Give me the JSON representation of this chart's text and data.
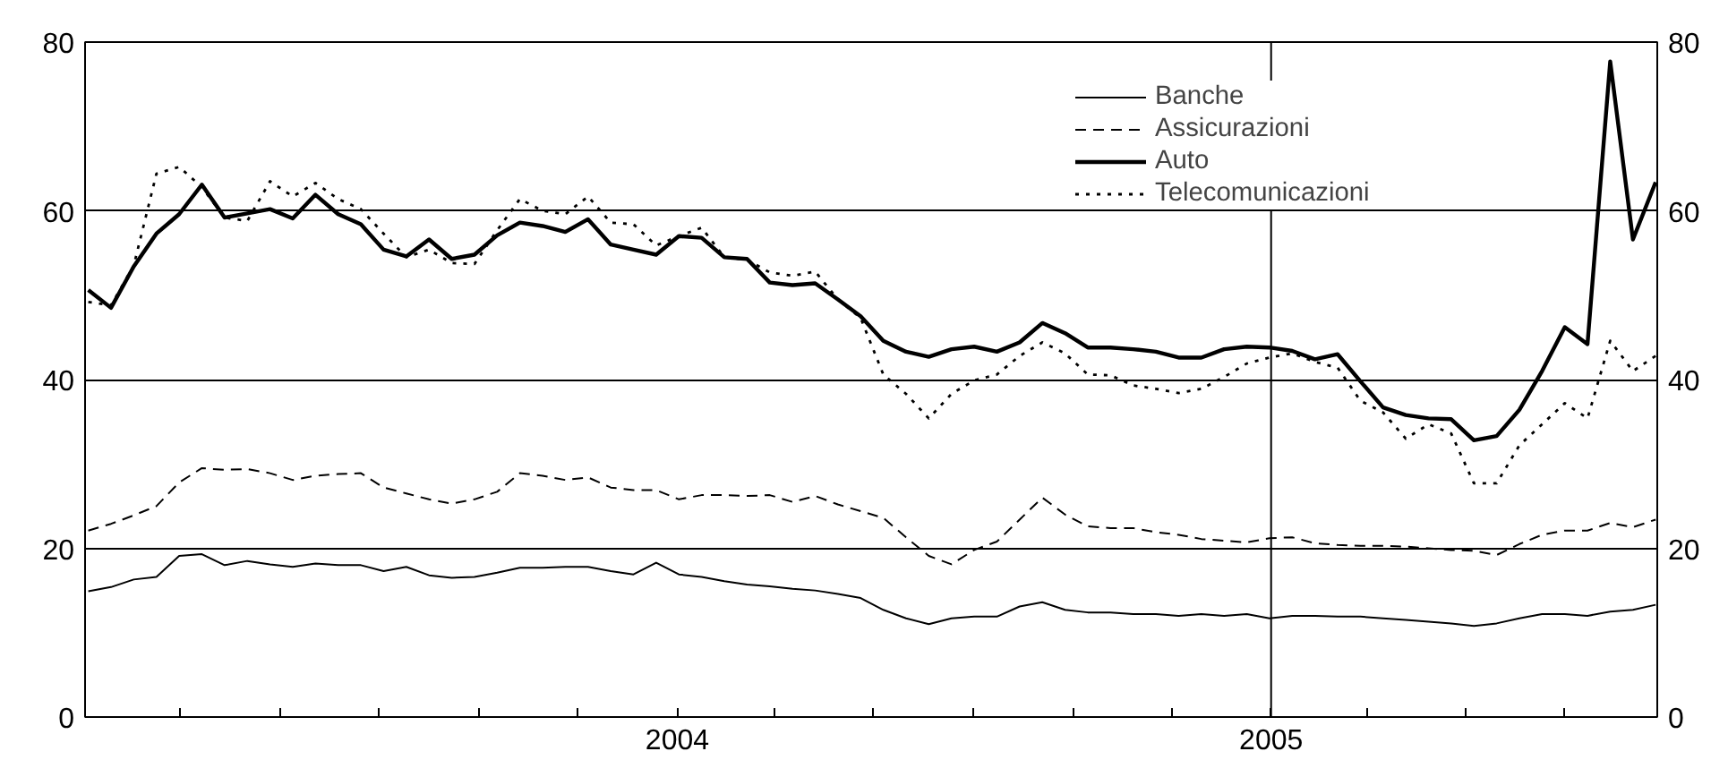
{
  "chart_data": {
    "type": "line",
    "x": [
      "2003-01-03",
      "2003-01-17",
      "2003-01-31",
      "2003-02-14",
      "2003-02-28",
      "2003-03-14",
      "2003-03-28",
      "2003-04-11",
      "2003-04-25",
      "2003-05-09",
      "2003-05-23",
      "2003-06-06",
      "2003-06-20",
      "2003-07-04",
      "2003-07-18",
      "2003-08-01",
      "2003-08-15",
      "2003-08-29",
      "2003-09-12",
      "2003-09-26",
      "2003-10-10",
      "2003-10-24",
      "2003-11-07",
      "2003-11-21",
      "2003-12-05",
      "2003-12-19",
      "2004-01-02",
      "2004-01-16",
      "2004-01-30",
      "2004-02-13",
      "2004-02-27",
      "2004-03-12",
      "2004-03-26",
      "2004-04-09",
      "2004-04-23",
      "2004-05-07",
      "2004-05-21",
      "2004-06-04",
      "2004-06-18",
      "2004-07-02",
      "2004-07-16",
      "2004-07-30",
      "2004-08-13",
      "2004-08-27",
      "2004-09-10",
      "2004-09-24",
      "2004-10-08",
      "2004-10-22",
      "2004-11-05",
      "2004-11-19",
      "2004-12-03",
      "2004-12-17",
      "2004-12-31",
      "2005-01-14",
      "2005-01-28",
      "2005-02-11",
      "2005-02-25",
      "2005-03-11",
      "2005-03-25",
      "2005-04-08",
      "2005-04-22",
      "2005-05-06",
      "2005-05-20",
      "2005-06-03",
      "2005-06-17",
      "2005-07-01",
      "2005-07-15",
      "2005-07-29",
      "2005-08-12",
      "2005-08-26"
    ],
    "series": [
      {
        "name": "Banche",
        "color": "#000000",
        "line_style": "solid",
        "values": [
          14.9,
          15.4,
          16.3,
          16.6,
          19.1,
          19.3,
          18.0,
          18.5,
          18.1,
          17.8,
          18.2,
          18.0,
          18.0,
          17.3,
          17.8,
          16.8,
          16.5,
          16.6,
          17.1,
          17.7,
          17.7,
          17.8,
          17.8,
          17.3,
          16.9,
          18.3,
          16.9,
          16.6,
          16.1,
          15.7,
          15.5,
          15.2,
          15.0,
          14.6,
          14.1,
          12.7,
          11.7,
          11.0,
          11.7,
          11.9,
          11.9,
          13.1,
          13.6,
          12.7,
          12.4,
          12.4,
          12.2,
          12.2,
          12.0,
          12.2,
          12.0,
          12.2,
          11.7,
          12.0,
          12.0,
          11.9,
          11.9,
          11.7,
          11.5,
          11.3,
          11.1,
          10.8,
          11.1,
          11.7,
          12.2,
          12.2,
          12.0,
          12.5,
          12.7,
          13.3
        ]
      },
      {
        "name": "Assicurazioni",
        "color": "#000000",
        "line_style": "dashed",
        "values": [
          22.1,
          22.9,
          23.9,
          25.0,
          27.8,
          29.5,
          29.3,
          29.4,
          28.9,
          28.1,
          28.6,
          28.8,
          28.9,
          27.2,
          26.5,
          25.8,
          25.3,
          25.8,
          26.7,
          28.9,
          28.6,
          28.1,
          28.4,
          27.2,
          26.9,
          26.9,
          25.8,
          26.3,
          26.3,
          26.2,
          26.3,
          25.5,
          26.2,
          25.2,
          24.4,
          23.6,
          21.3,
          19.1,
          18.1,
          19.8,
          20.8,
          23.4,
          26.0,
          24.0,
          22.6,
          22.4,
          22.4,
          21.9,
          21.6,
          21.1,
          20.9,
          20.7,
          21.2,
          21.3,
          20.6,
          20.4,
          20.3,
          20.3,
          20.2,
          20.0,
          19.8,
          19.7,
          19.2,
          20.5,
          21.6,
          22.1,
          22.1,
          23.0,
          22.5,
          23.4
        ]
      },
      {
        "name": "Auto",
        "color": "#000000",
        "line_style": "solid",
        "values": [
          50.6,
          48.5,
          53.4,
          57.3,
          59.6,
          63.1,
          59.2,
          59.7,
          60.2,
          59.1,
          61.9,
          59.6,
          58.4,
          55.4,
          54.6,
          56.6,
          54.3,
          54.8,
          57.1,
          58.6,
          58.2,
          57.5,
          59.0,
          56.0,
          55.4,
          54.8,
          57.0,
          56.8,
          54.5,
          54.3,
          51.5,
          51.2,
          51.4,
          49.5,
          47.5,
          44.6,
          43.3,
          42.7,
          43.6,
          43.9,
          43.3,
          44.4,
          46.7,
          45.5,
          43.8,
          43.8,
          43.6,
          43.3,
          42.6,
          42.6,
          43.6,
          43.9,
          43.8,
          43.4,
          42.4,
          43.0,
          39.8,
          36.7,
          35.8,
          35.4,
          35.3,
          32.8,
          33.3,
          36.4,
          41.0,
          46.2,
          44.2,
          77.7,
          56.6,
          63.4
        ]
      },
      {
        "name": "Telecomunicazioni",
        "color": "#000000",
        "line_style": "dotted",
        "values": [
          49.2,
          48.8,
          53.5,
          64.4,
          65.2,
          62.8,
          59.2,
          58.8,
          63.5,
          61.7,
          63.3,
          61.4,
          60.2,
          57.3,
          54.5,
          55.4,
          53.8,
          53.7,
          57.7,
          61.4,
          60.0,
          59.6,
          61.7,
          58.6,
          58.4,
          55.9,
          57.0,
          58.0,
          54.5,
          54.2,
          52.7,
          52.3,
          52.8,
          49.5,
          47.3,
          40.6,
          38.3,
          35.4,
          38.3,
          39.9,
          40.6,
          42.8,
          44.4,
          43.1,
          40.6,
          40.5,
          39.3,
          38.9,
          38.4,
          38.9,
          40.3,
          41.9,
          42.6,
          43.1,
          42.1,
          41.4,
          37.5,
          36.1,
          33.0,
          34.7,
          33.6,
          27.7,
          27.7,
          32.2,
          34.7,
          37.2,
          35.4,
          44.6,
          41.0,
          42.8
        ]
      }
    ],
    "xlim": [
      "2003-01-01",
      "2005-08-27"
    ],
    "xticks": [
      {
        "value": "2003-03-01",
        "label": null
      },
      {
        "value": "2003-05-01",
        "label": null
      },
      {
        "value": "2003-07-01",
        "label": null
      },
      {
        "value": "2003-09-01",
        "label": null
      },
      {
        "value": "2003-11-01",
        "label": null
      },
      {
        "value": "2004-01-01",
        "label": "2004"
      },
      {
        "value": "2004-03-01",
        "label": null
      },
      {
        "value": "2004-05-01",
        "label": null
      },
      {
        "value": "2004-07-01",
        "label": null
      },
      {
        "value": "2004-09-01",
        "label": null
      },
      {
        "value": "2004-11-01",
        "label": null
      },
      {
        "value": "2005-01-01",
        "label": "2005"
      },
      {
        "value": "2005-03-01",
        "label": null
      },
      {
        "value": "2005-05-01",
        "label": null
      },
      {
        "value": "2005-07-01",
        "label": null
      }
    ],
    "ylim": [
      0,
      80
    ],
    "yticks": [
      0,
      20,
      40,
      60,
      80
    ],
    "y2lim": [
      0,
      80
    ],
    "y2ticks": [
      0,
      20,
      40,
      60,
      80
    ],
    "ref_lines": [
      {
        "axis": "x",
        "value": "2005-01-01",
        "color": "#000000"
      }
    ],
    "grid": "y",
    "legend": "top right",
    "marker": "none"
  }
}
